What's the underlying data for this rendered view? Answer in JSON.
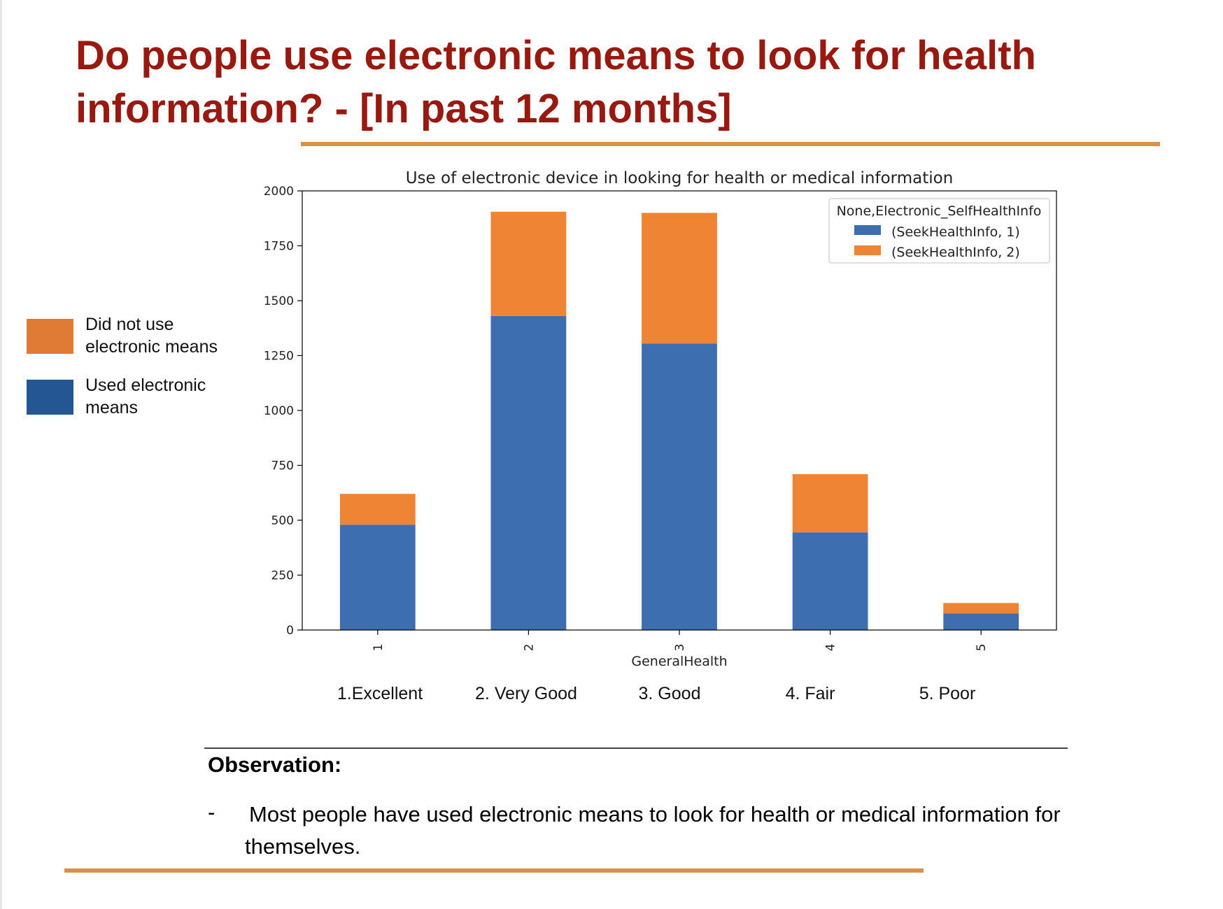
{
  "slide": {
    "title": "Do people use electronic means to look for health information? - [In past 12 months]",
    "observation_heading": "Observation:",
    "bullet_marker": "-",
    "observation_text": "Most people have used electronic means to look for health or medical information for themselves."
  },
  "side_legend": [
    {
      "label": "Did not use electronic means",
      "color": "#e07b35"
    },
    {
      "label": "Used electronic means",
      "color": "#255694"
    }
  ],
  "category_labels": [
    "1.Excellent",
    "2. Very Good",
    "3. Good",
    "4. Fair",
    "5. Poor"
  ],
  "colors": {
    "title": "#97190f",
    "accent_rule": "#d8904b",
    "series_1": "#3d6eb0",
    "series_2": "#ef8434"
  },
  "chart_data": {
    "type": "bar",
    "stacked": true,
    "title": "Use of electronic device in looking for health or medical information",
    "xlabel": "GeneralHealth",
    "ylabel": "",
    "categories": [
      "1",
      "2",
      "3",
      "4",
      "5"
    ],
    "ylim": [
      0,
      2000
    ],
    "yticks": [
      0,
      250,
      500,
      750,
      1000,
      1250,
      1500,
      1750,
      2000
    ],
    "legend_title": "None,Electronic_SelfHealthInfo",
    "legend_position": "top-right",
    "grid": false,
    "series": [
      {
        "name": "(SeekHealthInfo, 1)",
        "values": [
          480,
          1430,
          1305,
          445,
          75
        ],
        "color": "#3d6eb0"
      },
      {
        "name": "(SeekHealthInfo, 2)",
        "values": [
          140,
          475,
          595,
          265,
          48
        ],
        "color": "#ef8434"
      }
    ]
  }
}
